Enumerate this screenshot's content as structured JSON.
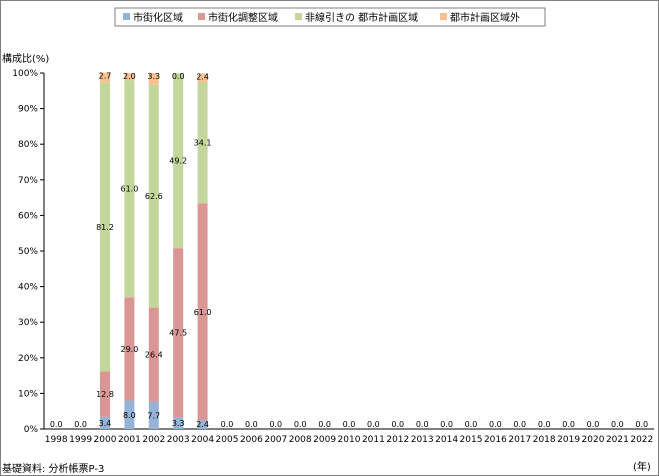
{
  "chart_data": {
    "type": "bar",
    "stacked": true,
    "ylabel": "構成比(%)",
    "xlabel": "(年)",
    "ylim": [
      0,
      100
    ],
    "y_ticks": [
      "0%",
      "10%",
      "20%",
      "30%",
      "40%",
      "50%",
      "60%",
      "70%",
      "80%",
      "90%",
      "100%"
    ],
    "categories": [
      "1998",
      "1999",
      "2000",
      "2001",
      "2002",
      "2003",
      "2004",
      "2005",
      "2006",
      "2007",
      "2008",
      "2009",
      "2010",
      "2011",
      "2012",
      "2013",
      "2014",
      "2015",
      "2016",
      "2017",
      "2018",
      "2019",
      "2020",
      "2021",
      "2022"
    ],
    "series": [
      {
        "name": "市街化区域",
        "color": "#95b3d7",
        "values": [
          0,
          0,
          3.4,
          8.0,
          7.7,
          3.3,
          2.4,
          0,
          0,
          0,
          0,
          0,
          0,
          0,
          0,
          0,
          0,
          0,
          0,
          0,
          0,
          0,
          0,
          0,
          0
        ],
        "labels": [
          "",
          "",
          "3.4",
          "8.0",
          "7.7",
          "3.3",
          "2.4",
          "",
          "",
          "",
          "",
          "",
          "",
          "",
          "",
          "",
          "",
          "",
          "",
          "",
          "",
          "",
          "",
          "",
          ""
        ]
      },
      {
        "name": "市街化調整区域",
        "color": "#d99694",
        "values": [
          0,
          0,
          12.8,
          29.0,
          26.4,
          47.5,
          61.0,
          0,
          0,
          0,
          0,
          0,
          0,
          0,
          0,
          0,
          0,
          0,
          0,
          0,
          0,
          0,
          0,
          0,
          0
        ],
        "labels": [
          "",
          "",
          "12.8",
          "29.0",
          "26.4",
          "47.5",
          "61.0",
          "",
          "",
          "",
          "",
          "",
          "",
          "",
          "",
          "",
          "",
          "",
          "",
          "",
          "",
          "",
          "",
          "",
          ""
        ]
      },
      {
        "name": "非線引きの 都市計画区域",
        "color": "#c3d69b",
        "values": [
          0,
          0,
          81.2,
          61.0,
          62.6,
          49.2,
          34.1,
          0,
          0,
          0,
          0,
          0,
          0,
          0,
          0,
          0,
          0,
          0,
          0,
          0,
          0,
          0,
          0,
          0,
          0
        ],
        "labels": [
          "",
          "",
          "81.2",
          "61.0",
          "62.6",
          "49.2",
          "34.1",
          "",
          "",
          "",
          "",
          "",
          "",
          "",
          "",
          "",
          "",
          "",
          "",
          "",
          "",
          "",
          "",
          "",
          ""
        ]
      },
      {
        "name": "都市計画区域外",
        "color": "#fac090",
        "values": [
          0,
          0,
          2.7,
          2.0,
          3.3,
          0.0,
          2.4,
          0,
          0,
          0,
          0,
          0,
          0,
          0,
          0,
          0,
          0,
          0,
          0,
          0,
          0,
          0,
          0,
          0,
          0
        ],
        "labels": [
          "",
          "",
          "2.7",
          "2.0",
          "3.3",
          "0.0",
          "2.4",
          "",
          "",
          "",
          "",
          "",
          "",
          "",
          "",
          "",
          "",
          "",
          "",
          "",
          "",
          "",
          "",
          "",
          ""
        ]
      }
    ],
    "zero_labels": [
      "0.0",
      "0.0",
      "",
      "",
      "",
      "",
      "",
      "0.0",
      "0.0",
      "0.0",
      "0.0",
      "0.0",
      "0.0",
      "0.0",
      "0.0",
      "0.0",
      "0.0",
      "0.0",
      "0.0",
      "0.0",
      "0.0",
      "0.0",
      "0.0",
      "0.0",
      "0.0"
    ],
    "legend_position": "top",
    "grid": false
  },
  "source_note": "基礎資料: 分析帳票P-3"
}
